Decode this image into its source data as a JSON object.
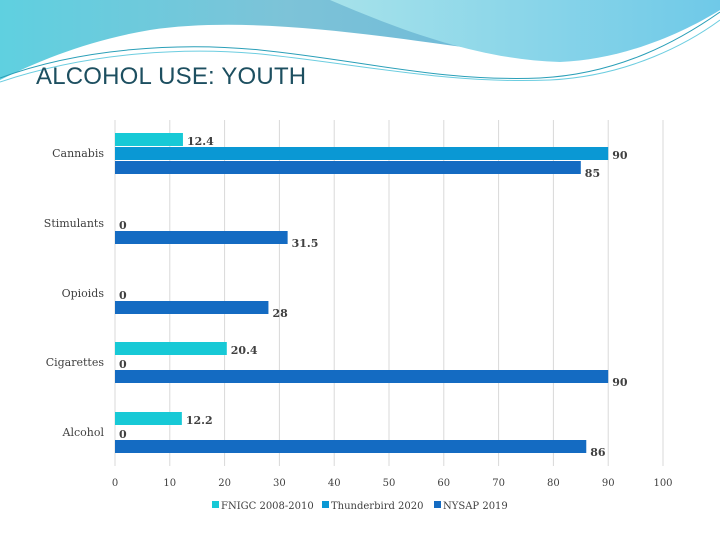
{
  "slide": {
    "title": "ALCOHOL USE: YOUTH"
  },
  "chart_data": {
    "type": "bar",
    "orientation": "horizontal",
    "categories": [
      "Cannabis",
      "Stimulants",
      "Opioids",
      "Cigarettes",
      "Alcohol"
    ],
    "series": [
      {
        "name": "FNIGC 2008-2010",
        "color": "#17c9d6",
        "values": [
          12.4,
          null,
          null,
          20.4,
          12.2
        ]
      },
      {
        "name": "Thunderbird 2020",
        "color": "#0a98d4",
        "values": [
          90,
          0,
          0,
          0,
          0
        ]
      },
      {
        "name": "NYSAP 2019",
        "color": "#146bc2",
        "values": [
          85,
          31.5,
          28,
          90,
          86
        ]
      }
    ],
    "xlim": [
      0,
      100
    ],
    "xticks": [
      0,
      10,
      20,
      30,
      40,
      50,
      60,
      70,
      80,
      90,
      100
    ],
    "grid": "vertical",
    "legend": "bottom",
    "data_labels": true
  }
}
